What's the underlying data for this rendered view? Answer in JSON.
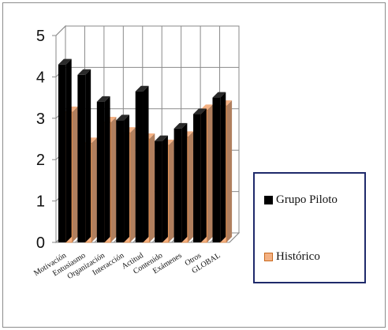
{
  "chart_data": {
    "type": "bar",
    "categories": [
      "Motivación",
      "Entusiasmo",
      "Organización",
      "Interacción",
      "Actitud",
      "Contenido",
      "Exámenes",
      "Otros",
      "GLOBAL"
    ],
    "series": [
      {
        "name": "Grupo Piloto",
        "values": [
          4.3,
          4.05,
          3.4,
          2.95,
          3.65,
          2.45,
          2.75,
          3.1,
          3.5
        ],
        "color": "#000000"
      },
      {
        "name": "Histórico",
        "values": [
          3.15,
          2.4,
          2.9,
          2.65,
          2.5,
          2.35,
          2.55,
          3.2,
          3.3
        ],
        "color": "#f4b183"
      }
    ],
    "yticks": [
      0,
      1,
      2,
      3,
      4,
      5
    ],
    "ylim": [
      0,
      5
    ],
    "grid": true,
    "style": "3d-clustered-column",
    "legend_position": "right"
  }
}
